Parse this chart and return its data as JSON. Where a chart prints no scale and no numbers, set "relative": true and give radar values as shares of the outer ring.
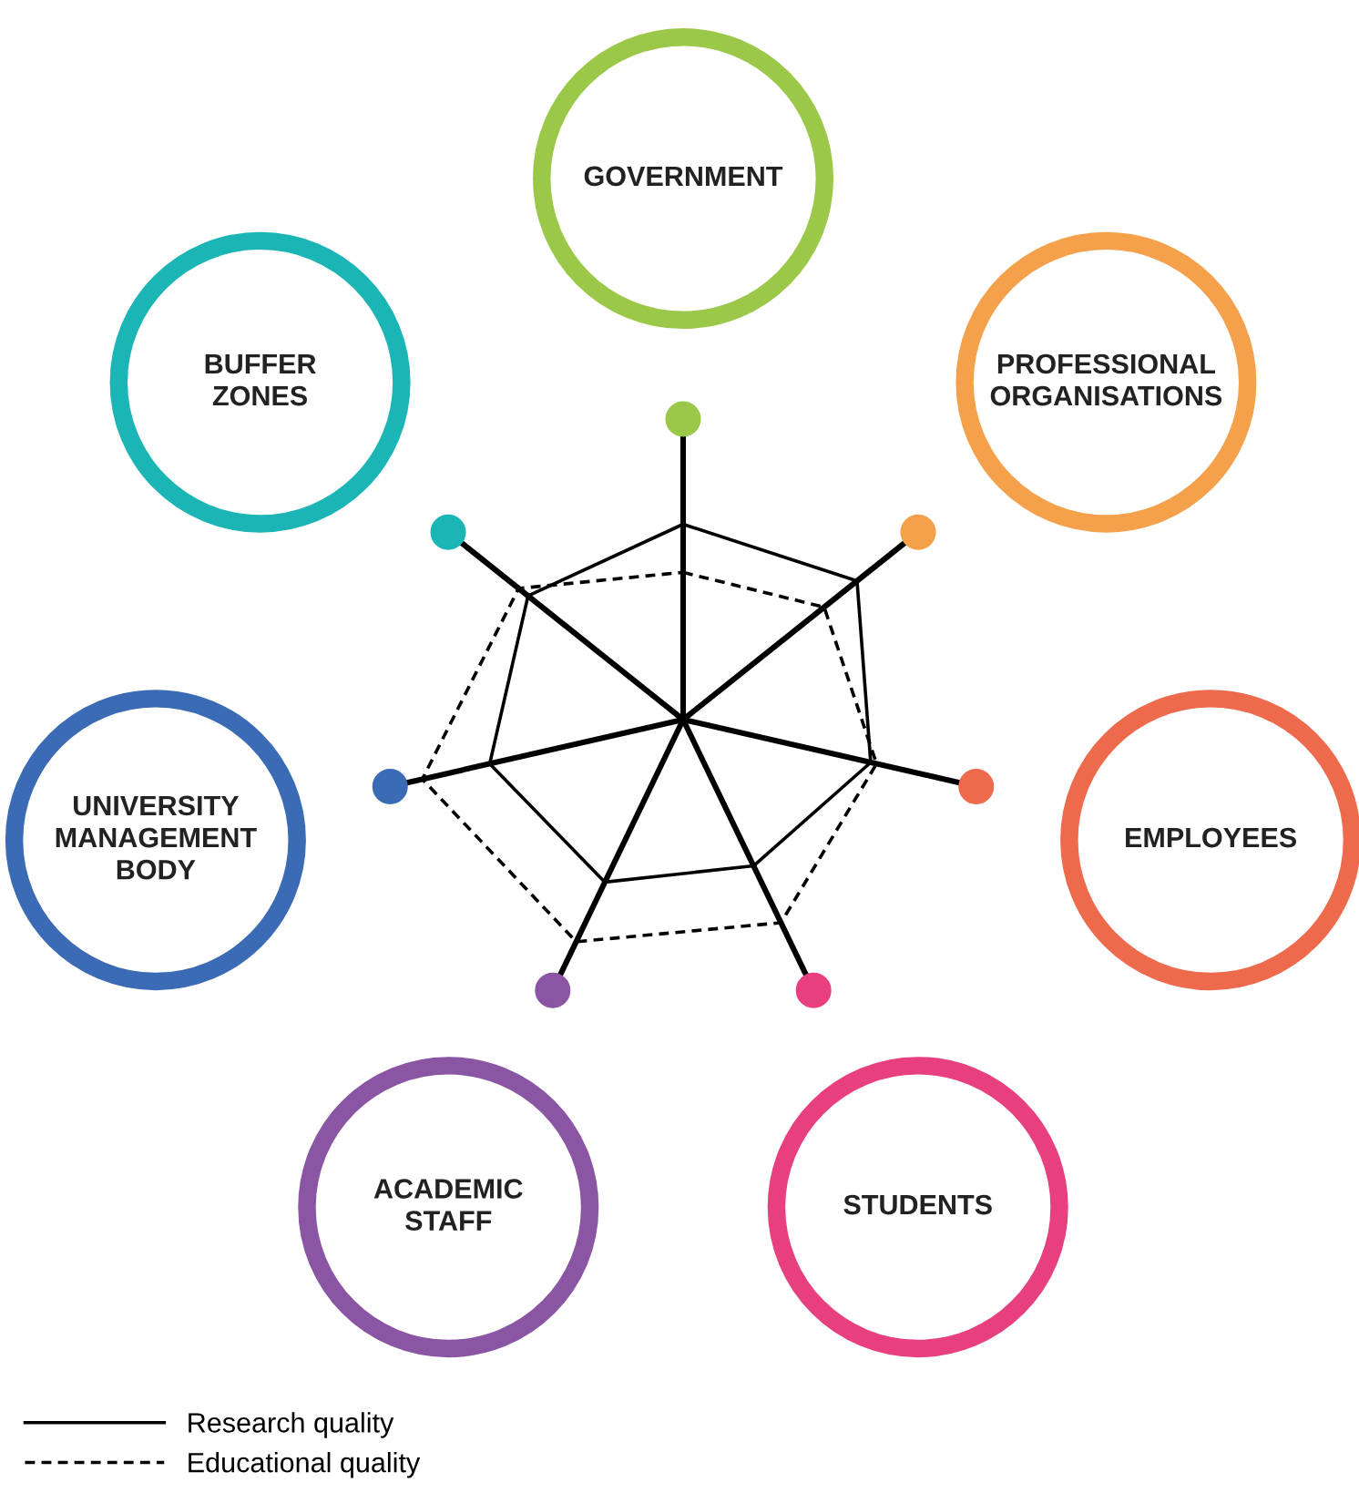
{
  "chart_data": {
    "type": "radar",
    "relative": true,
    "legend": "bottom left",
    "marker": "none",
    "categories": [
      "GOVERNMENT",
      "PROFESSIONAL\nORGANISATIONS",
      "EMPLOYEES",
      "STUDENTS",
      "ACADEMIC\nSTAFF",
      "UNIVERSITY\nMANAGEMENT\nBODY",
      "BUFFER\nZONES"
    ],
    "colors": [
      "#9cc84a",
      "#f5a04a",
      "#ee6a4c",
      "#e8407f",
      "#8a55a3",
      "#3b6bb5",
      "#1cb5b5"
    ],
    "series": [
      {
        "name": "Research quality",
        "color": "#000000",
        "line_style": "solid",
        "values": [
          0.65,
          0.74,
          0.64,
          0.54,
          0.6,
          0.66,
          0.66
        ]
      },
      {
        "name": "Educational quality",
        "color": "#000000",
        "line_style": "dashed",
        "values": [
          0.49,
          0.6,
          0.66,
          0.75,
          0.82,
          0.89,
          0.7
        ]
      }
    ]
  }
}
